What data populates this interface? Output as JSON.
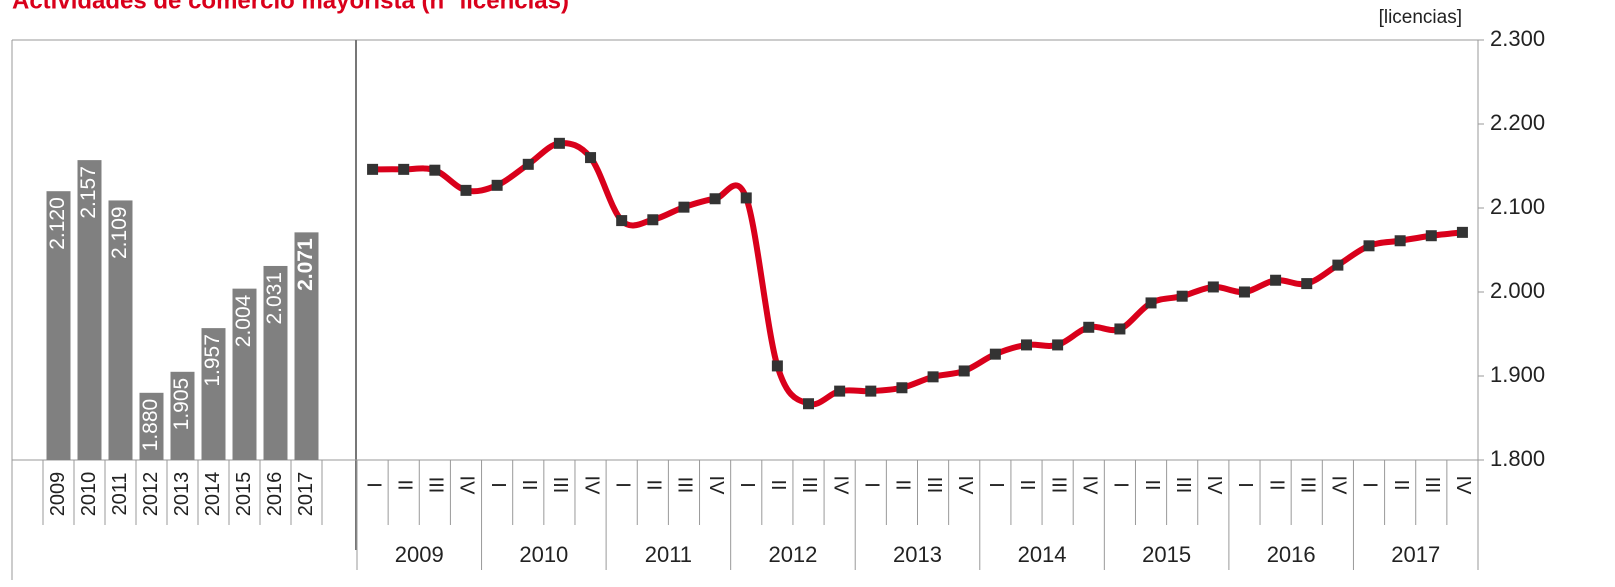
{
  "chart_data": [
    {
      "type": "bar",
      "title": "Actividades de comercio mayorista (nº licencias)",
      "categories": [
        "2009",
        "2010",
        "2011",
        "2012",
        "2013",
        "2014",
        "2015",
        "2016",
        "2017"
      ],
      "values": [
        2120,
        2157,
        2109,
        1880,
        1905,
        1957,
        2004,
        2031,
        2071
      ],
      "value_labels": [
        "2.120",
        "2.157",
        "2.109",
        "1.880",
        "1.905",
        "1.957",
        "2.004",
        "2.031",
        "2.071"
      ],
      "color": "#808080",
      "ylim": [
        1800,
        2300
      ]
    },
    {
      "type": "line",
      "y_label": "[licencias]",
      "categories": [
        "I",
        "II",
        "III",
        "IV",
        "I",
        "II",
        "III",
        "IV",
        "I",
        "II",
        "III",
        "IV",
        "I",
        "II",
        "III",
        "IV",
        "I",
        "II",
        "III",
        "IV",
        "I",
        "II",
        "III",
        "IV",
        "I",
        "II",
        "III",
        "IV",
        "I",
        "II",
        "III",
        "IV",
        "I",
        "II",
        "III",
        "IV"
      ],
      "groups": [
        "2009",
        "2010",
        "2011",
        "2012",
        "2013",
        "2014",
        "2015",
        "2016",
        "2017"
      ],
      "values": [
        2146,
        2146,
        2145,
        2121,
        2127,
        2152,
        2177,
        2160,
        2085,
        2086,
        2101,
        2111,
        2112,
        1912,
        1867,
        1882,
        1882,
        1886,
        1899,
        1906,
        1926,
        1937,
        1937,
        1958,
        1956,
        1987,
        1995,
        2006,
        2000,
        2014,
        2010,
        2032,
        2055,
        2061,
        2067,
        2071
      ],
      "color": "#d9001b",
      "marker_color": "#333333",
      "ylim": [
        1800,
        2300
      ],
      "yticks": [
        {
          "value": 1800,
          "label": "1.800"
        },
        {
          "value": 1900,
          "label": "1.900"
        },
        {
          "value": 2000,
          "label": "2.000"
        },
        {
          "value": 2100,
          "label": "2.100"
        },
        {
          "value": 2200,
          "label": "2.200"
        },
        {
          "value": 2300,
          "label": "2.300"
        }
      ]
    }
  ]
}
